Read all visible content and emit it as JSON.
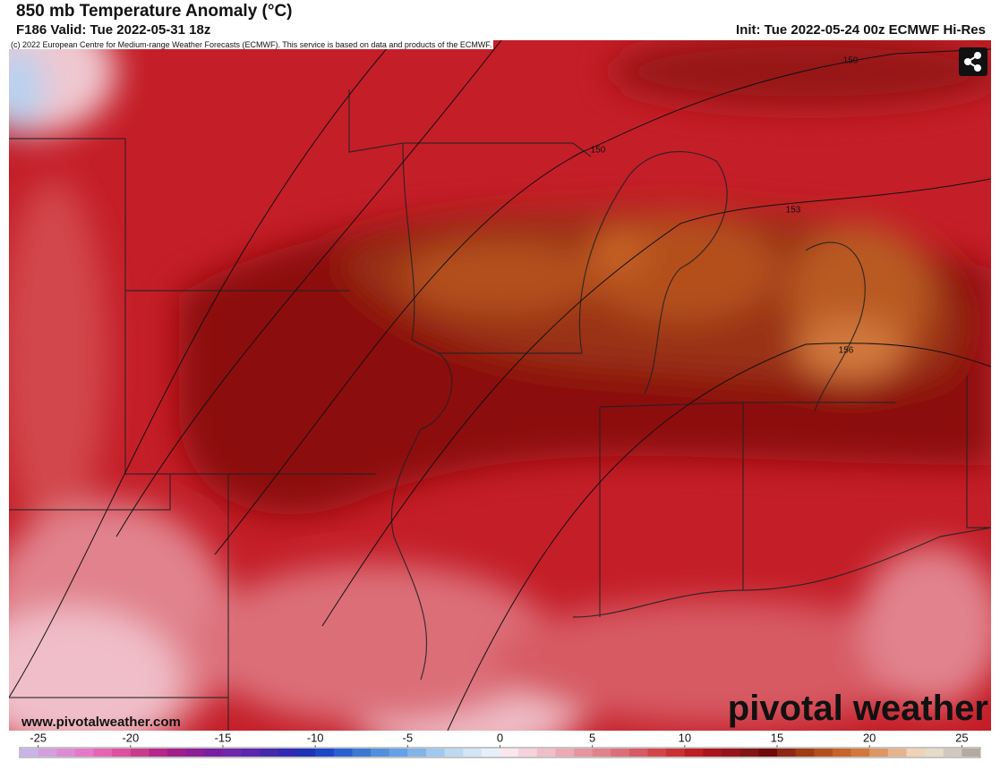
{
  "header": {
    "title": "850 mb Temperature Anomaly (°C)",
    "valid": "F186 Valid: Tue 2022-05-31 18z",
    "init": "Init: Tue 2022-05-24 00z ECMWF Hi-Res",
    "copyright": "(c) 2022 European Centre for Medium-range Weather Forecasts (ECMWF). This service is based on data and products of the ECMWF."
  },
  "map": {
    "contour_labels": [
      "150",
      "150",
      "153",
      "156"
    ],
    "website": "www.pivotalweather.com",
    "logo": "pivotal weather"
  },
  "colorbar": {
    "range": [
      -26,
      26
    ],
    "ticks": [
      -25,
      -20,
      -15,
      -10,
      -5,
      0,
      5,
      10,
      15,
      20,
      25
    ],
    "colors": [
      "#c8b4e6",
      "#d2a0dc",
      "#dc8cd2",
      "#e678c8",
      "#e664b4",
      "#dc50a0",
      "#c83c8c",
      "#b4288c",
      "#a01e8c",
      "#8c1e96",
      "#781ea0",
      "#6e28aa",
      "#5a28aa",
      "#4628aa",
      "#3228b4",
      "#1e32b4",
      "#1e46c8",
      "#2860d2",
      "#3c78d2",
      "#5090dc",
      "#64a0e6",
      "#82b4e6",
      "#a0c8f0",
      "#bed8f0",
      "#d2e4f5",
      "#e6f0fa",
      "#fae6ec",
      "#f5d2dc",
      "#f0bec8",
      "#ebaab4",
      "#e6969f",
      "#e1828c",
      "#dc6e78",
      "#d75a64",
      "#d2464b",
      "#c83232",
      "#be1e23",
      "#aa141e",
      "#961419",
      "#821414",
      "#6e0a0a",
      "#8c2814",
      "#a03c14",
      "#b4501e",
      "#c86428",
      "#d2783c",
      "#dc9664",
      "#e6b48c",
      "#f0d2b4",
      "#e6dcc8",
      "#d2c8be",
      "#b4aaa0"
    ]
  }
}
